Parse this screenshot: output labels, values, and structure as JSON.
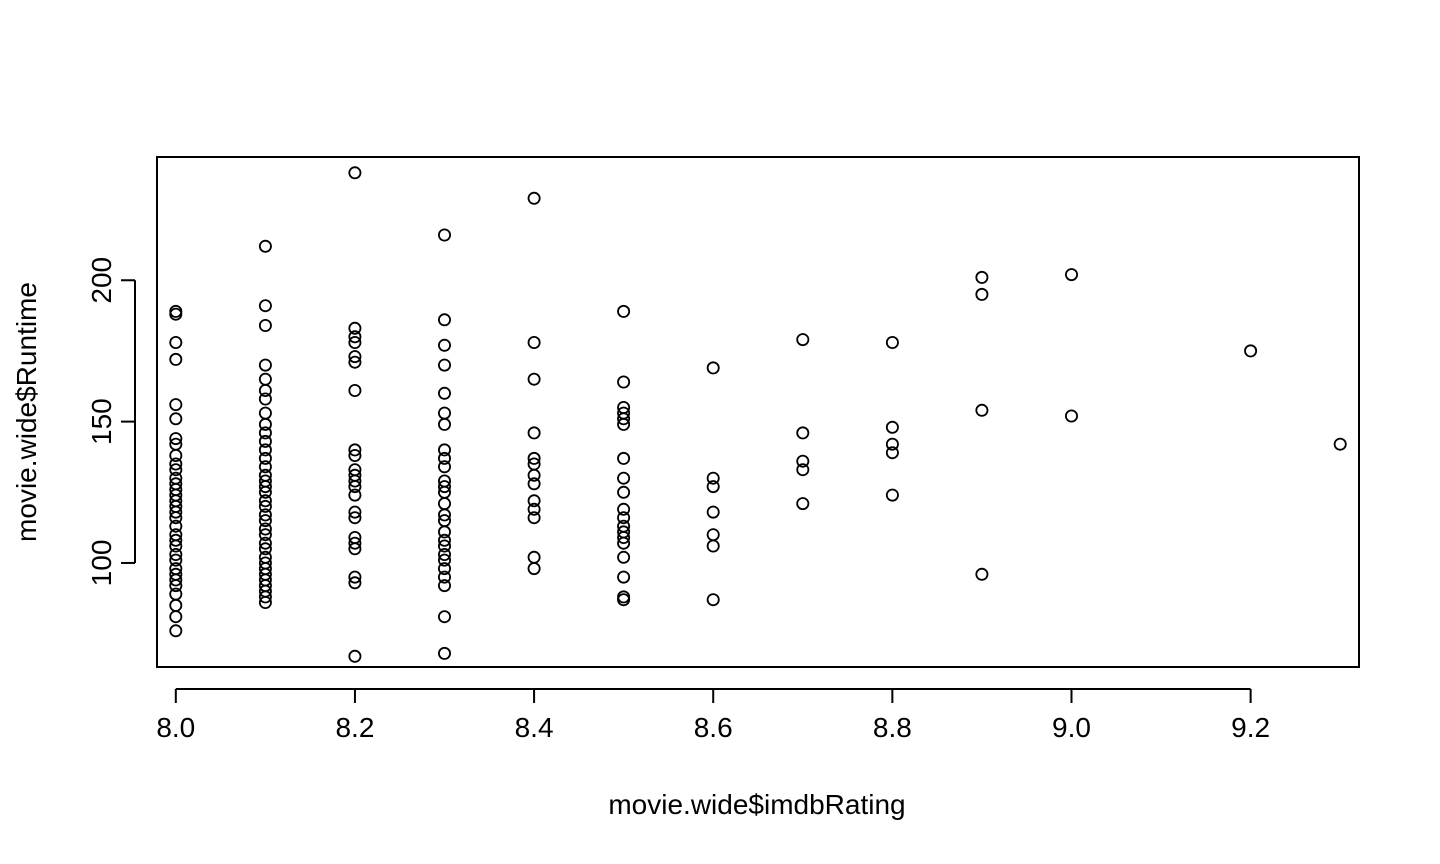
{
  "chart_data": {
    "type": "scatter",
    "title": "",
    "xlabel": "movie.wide$imdbRating",
    "ylabel": "movie.wide$Runtime",
    "xlim": [
      7.979,
      9.321
    ],
    "ylim": [
      63.2,
      243.6
    ],
    "xticks": [
      8.0,
      8.2,
      8.4,
      8.6,
      8.8,
      9.0,
      9.2
    ],
    "xtick_labels": [
      "8.0",
      "8.2",
      "8.4",
      "8.6",
      "8.8",
      "9.0",
      "9.2"
    ],
    "yticks": [
      100,
      150,
      200
    ],
    "ytick_labels": [
      "100",
      "150",
      "200"
    ],
    "grid": false,
    "legend": "none",
    "marker": "open-circle",
    "points": [
      [
        8.0,
        189
      ],
      [
        8.0,
        188
      ],
      [
        8.0,
        178
      ],
      [
        8.0,
        172
      ],
      [
        8.0,
        156
      ],
      [
        8.0,
        151
      ],
      [
        8.0,
        144
      ],
      [
        8.0,
        142
      ],
      [
        8.0,
        138
      ],
      [
        8.0,
        135
      ],
      [
        8.0,
        133
      ],
      [
        8.0,
        130
      ],
      [
        8.0,
        128
      ],
      [
        8.0,
        126
      ],
      [
        8.0,
        124
      ],
      [
        8.0,
        122
      ],
      [
        8.0,
        120
      ],
      [
        8.0,
        118
      ],
      [
        8.0,
        116
      ],
      [
        8.0,
        113
      ],
      [
        8.0,
        110
      ],
      [
        8.0,
        108
      ],
      [
        8.0,
        106
      ],
      [
        8.0,
        103
      ],
      [
        8.0,
        101
      ],
      [
        8.0,
        98
      ],
      [
        8.0,
        96
      ],
      [
        8.0,
        94
      ],
      [
        8.0,
        92
      ],
      [
        8.0,
        89
      ],
      [
        8.0,
        85
      ],
      [
        8.0,
        81
      ],
      [
        8.0,
        76
      ],
      [
        8.1,
        212
      ],
      [
        8.1,
        191
      ],
      [
        8.1,
        184
      ],
      [
        8.1,
        170
      ],
      [
        8.1,
        165
      ],
      [
        8.1,
        161
      ],
      [
        8.1,
        158
      ],
      [
        8.1,
        153
      ],
      [
        8.1,
        149
      ],
      [
        8.1,
        146
      ],
      [
        8.1,
        143
      ],
      [
        8.1,
        140
      ],
      [
        8.1,
        137
      ],
      [
        8.1,
        134
      ],
      [
        8.1,
        131
      ],
      [
        8.1,
        129
      ],
      [
        8.1,
        127
      ],
      [
        8.1,
        125
      ],
      [
        8.1,
        122
      ],
      [
        8.1,
        120
      ],
      [
        8.1,
        117
      ],
      [
        8.1,
        115
      ],
      [
        8.1,
        112
      ],
      [
        8.1,
        110
      ],
      [
        8.1,
        107
      ],
      [
        8.1,
        105
      ],
      [
        8.1,
        102
      ],
      [
        8.1,
        100
      ],
      [
        8.1,
        98
      ],
      [
        8.1,
        96
      ],
      [
        8.1,
        94
      ],
      [
        8.1,
        92
      ],
      [
        8.1,
        90
      ],
      [
        8.1,
        88
      ],
      [
        8.1,
        86
      ],
      [
        8.2,
        238
      ],
      [
        8.2,
        183
      ],
      [
        8.2,
        180
      ],
      [
        8.2,
        178
      ],
      [
        8.2,
        173
      ],
      [
        8.2,
        171
      ],
      [
        8.2,
        161
      ],
      [
        8.2,
        140
      ],
      [
        8.2,
        138
      ],
      [
        8.2,
        133
      ],
      [
        8.2,
        131
      ],
      [
        8.2,
        129
      ],
      [
        8.2,
        127
      ],
      [
        8.2,
        124
      ],
      [
        8.2,
        118
      ],
      [
        8.2,
        116
      ],
      [
        8.2,
        109
      ],
      [
        8.2,
        107
      ],
      [
        8.2,
        105
      ],
      [
        8.2,
        95
      ],
      [
        8.2,
        93
      ],
      [
        8.2,
        67
      ],
      [
        8.3,
        216
      ],
      [
        8.3,
        186
      ],
      [
        8.3,
        177
      ],
      [
        8.3,
        170
      ],
      [
        8.3,
        160
      ],
      [
        8.3,
        153
      ],
      [
        8.3,
        149
      ],
      [
        8.3,
        140
      ],
      [
        8.3,
        137
      ],
      [
        8.3,
        134
      ],
      [
        8.3,
        129
      ],
      [
        8.3,
        127
      ],
      [
        8.3,
        125
      ],
      [
        8.3,
        121
      ],
      [
        8.3,
        117
      ],
      [
        8.3,
        115
      ],
      [
        8.3,
        111
      ],
      [
        8.3,
        108
      ],
      [
        8.3,
        106
      ],
      [
        8.3,
        103
      ],
      [
        8.3,
        101
      ],
      [
        8.3,
        98
      ],
      [
        8.3,
        95
      ],
      [
        8.3,
        92
      ],
      [
        8.3,
        81
      ],
      [
        8.3,
        68
      ],
      [
        8.4,
        229
      ],
      [
        8.4,
        178
      ],
      [
        8.4,
        165
      ],
      [
        8.4,
        146
      ],
      [
        8.4,
        137
      ],
      [
        8.4,
        135
      ],
      [
        8.4,
        131
      ],
      [
        8.4,
        128
      ],
      [
        8.4,
        122
      ],
      [
        8.4,
        119
      ],
      [
        8.4,
        116
      ],
      [
        8.4,
        102
      ],
      [
        8.4,
        98
      ],
      [
        8.5,
        189
      ],
      [
        8.5,
        164
      ],
      [
        8.5,
        155
      ],
      [
        8.5,
        153
      ],
      [
        8.5,
        151
      ],
      [
        8.5,
        149
      ],
      [
        8.5,
        137
      ],
      [
        8.5,
        130
      ],
      [
        8.5,
        125
      ],
      [
        8.5,
        119
      ],
      [
        8.5,
        116
      ],
      [
        8.5,
        113
      ],
      [
        8.5,
        111
      ],
      [
        8.5,
        109
      ],
      [
        8.5,
        107
      ],
      [
        8.5,
        102
      ],
      [
        8.5,
        95
      ],
      [
        8.5,
        88
      ],
      [
        8.5,
        87
      ],
      [
        8.6,
        169
      ],
      [
        8.6,
        130
      ],
      [
        8.6,
        127
      ],
      [
        8.6,
        118
      ],
      [
        8.6,
        110
      ],
      [
        8.6,
        106
      ],
      [
        8.6,
        87
      ],
      [
        8.7,
        179
      ],
      [
        8.7,
        146
      ],
      [
        8.7,
        136
      ],
      [
        8.7,
        133
      ],
      [
        8.7,
        121
      ],
      [
        8.8,
        178
      ],
      [
        8.8,
        148
      ],
      [
        8.8,
        142
      ],
      [
        8.8,
        139
      ],
      [
        8.8,
        124
      ],
      [
        8.9,
        201
      ],
      [
        8.9,
        195
      ],
      [
        8.9,
        154
      ],
      [
        8.9,
        96
      ],
      [
        9.0,
        202
      ],
      [
        9.0,
        152
      ],
      [
        9.2,
        175
      ],
      [
        9.3,
        142
      ]
    ]
  }
}
